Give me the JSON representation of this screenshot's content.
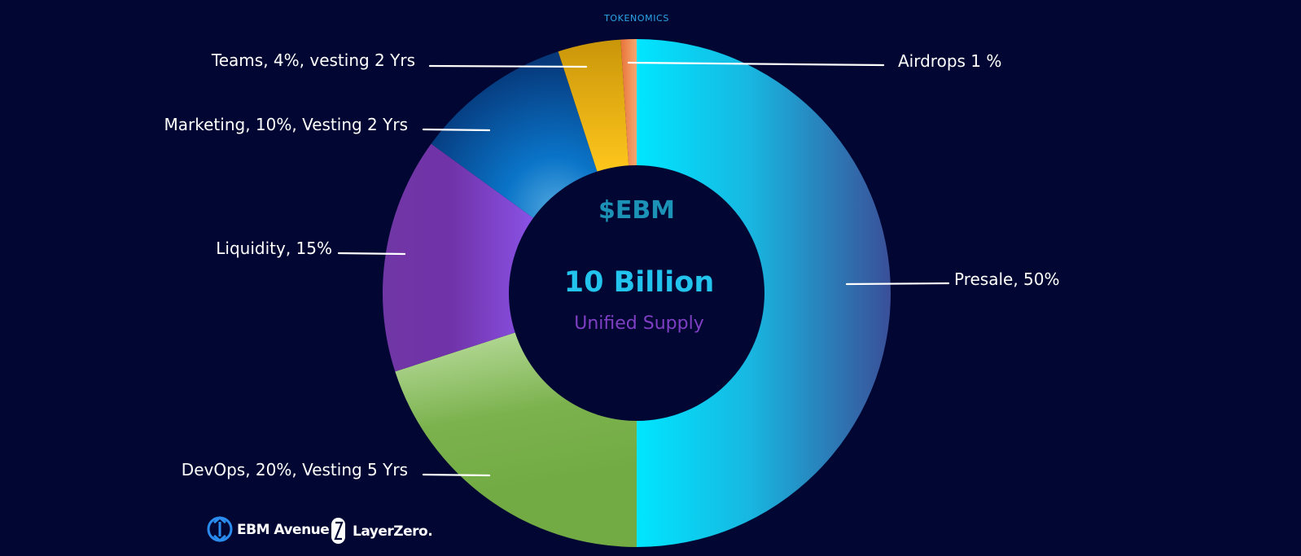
{
  "header": {
    "title": "TOKENOMICS"
  },
  "center": {
    "ticker": "$EBM",
    "total": "10 Billion",
    "subtitle": "Unified Supply"
  },
  "footer": {
    "logos": [
      {
        "name": "EBM Avenue",
        "icon": "ebm-avenue-logo-icon"
      },
      {
        "name": "LayerZero.",
        "icon": "layerzero-logo-icon"
      }
    ]
  },
  "colors": {
    "background": "#010632",
    "presale": "#00e1ff",
    "devops": "#7ab24a",
    "liquidity": "#7b45cf",
    "marketing": "#0a5fb0",
    "teams": "#f5b800",
    "airdrops": "#ee8c4e"
  },
  "chart_data": {
    "type": "pie",
    "style": "donut",
    "title": "TOKENOMICS",
    "total_label": "10 Billion",
    "categories": [
      "Presale",
      "DevOps",
      "Liquidity",
      "Marketing",
      "Teams",
      "Airdrops"
    ],
    "values": [
      50,
      20,
      15,
      10,
      4,
      1
    ],
    "unit": "%",
    "labels": [
      "Presale, 50%",
      "DevOps, 20%, Vesting 5 Yrs",
      "Liquidity, 15%",
      "Marketing, 10%, Vesting 2 Yrs",
      "Teams, 4%, vesting 2 Yrs",
      "Airdrops 1 %"
    ],
    "legend": "none"
  }
}
